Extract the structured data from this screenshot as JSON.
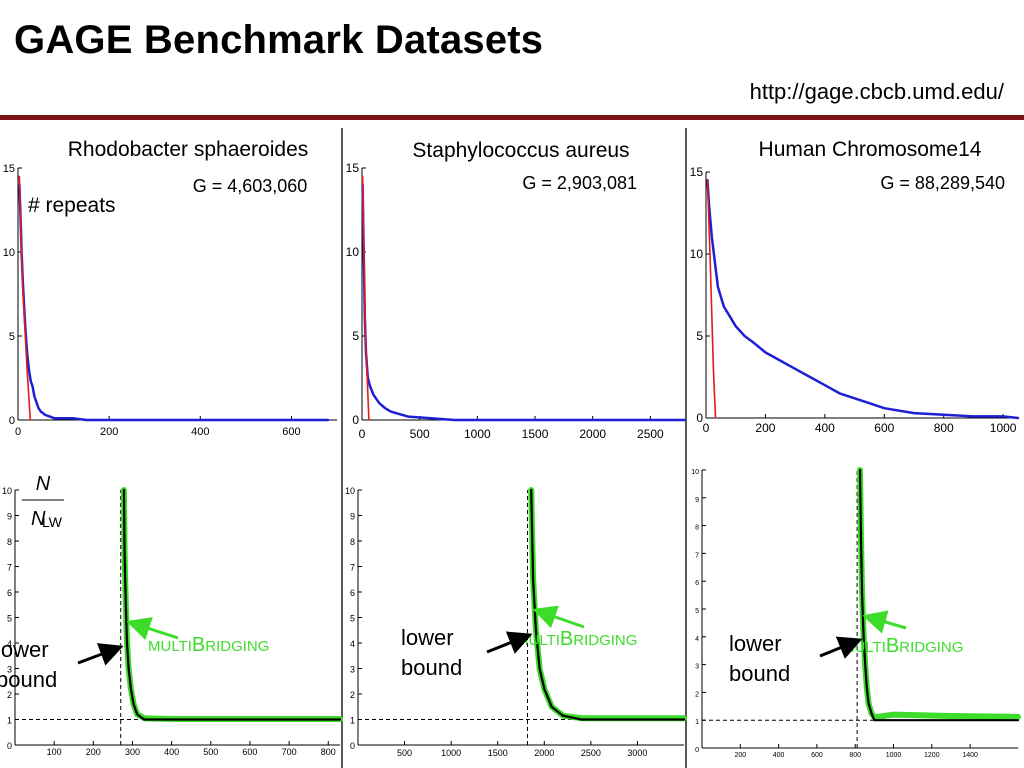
{
  "page": {
    "title": "GAGE Benchmark Datasets",
    "url": "http://gage.cbcb.umd.edu/"
  },
  "colors": {
    "rule": "#7b1214",
    "series_blue": "#1f1fd6",
    "series_red": "#e21b1b",
    "series_green": "#3ddc2a",
    "series_black": "#000000",
    "arrow_green": "#3ddc2a",
    "arrow_black": "#000000"
  },
  "annotations": {
    "repeats_label": "# repeats",
    "ratio_numerator": "N",
    "ratio_denominator_main": "N",
    "ratio_denominator_sub": "LW",
    "lower_bound_line1": "lower",
    "lower_bound_line2": "bound",
    "multibridging_small1": "MULTI",
    "multibridging_big": "B",
    "multibridging_small2": "RIDGING"
  },
  "chart_data": [
    {
      "type": "line",
      "title": "Rhodobacter sphaeroides",
      "annotation": "G = 4,603,060",
      "xlim": [
        0,
        700
      ],
      "ylim": [
        0,
        15
      ],
      "xticks": [
        0,
        200,
        400,
        600
      ],
      "yticks": [
        0,
        5,
        10,
        15
      ],
      "series": [
        {
          "color": "blue",
          "x": [
            3,
            5,
            8,
            10,
            13,
            16,
            20,
            24,
            28,
            32,
            36,
            40,
            45,
            50,
            55,
            60,
            70,
            80,
            100,
            120,
            150,
            200,
            260,
            280,
            360,
            460,
            680
          ],
          "y": [
            14,
            12.5,
            10,
            8.5,
            7,
            5.5,
            4,
            3,
            2.3,
            2,
            1.4,
            1.1,
            0.7,
            0.5,
            0.4,
            0.3,
            0.2,
            0.1,
            0.1,
            0.1,
            0,
            0,
            0,
            0,
            0,
            0,
            0
          ]
        },
        {
          "color": "red",
          "x": [
            3,
            10,
            20,
            27
          ],
          "y": [
            14.5,
            8,
            3,
            0
          ]
        }
      ]
    },
    {
      "type": "line",
      "title": "Staphylococcus aureus",
      "annotation": "G = 2,903,081",
      "xlim": [
        0,
        2800
      ],
      "ylim": [
        0,
        15
      ],
      "xticks": [
        0,
        500,
        1000,
        1500,
        2000,
        2500
      ],
      "yticks": [
        0,
        5,
        10,
        15
      ],
      "series": [
        {
          "color": "blue",
          "x": [
            5,
            15,
            25,
            35,
            50,
            70,
            100,
            150,
            200,
            250,
            300,
            400,
            600,
            800,
            1000,
            1200,
            1500,
            1700,
            2200,
            2500,
            2800
          ],
          "y": [
            14,
            10,
            6,
            4,
            2.5,
            2,
            1.5,
            1,
            0.7,
            0.5,
            0.4,
            0.2,
            0.1,
            0,
            0,
            0,
            0,
            0,
            0,
            0,
            0
          ]
        },
        {
          "color": "red",
          "x": [
            5,
            30,
            60
          ],
          "y": [
            14.5,
            5,
            0
          ]
        }
      ]
    },
    {
      "type": "line",
      "title": "Human Chromosome14",
      "annotation": "G = 88,289,540",
      "xlim": [
        0,
        1050
      ],
      "ylim": [
        0,
        15
      ],
      "xticks": [
        0,
        200,
        400,
        600,
        800,
        1000
      ],
      "yticks": [
        0,
        5,
        10,
        15
      ],
      "series": [
        {
          "color": "blue",
          "x": [
            5,
            10,
            20,
            30,
            40,
            60,
            80,
            100,
            130,
            160,
            200,
            250,
            300,
            350,
            400,
            450,
            500,
            550,
            600,
            700,
            800,
            900,
            1000,
            1050
          ],
          "y": [
            14.5,
            13,
            11,
            9.5,
            8,
            6.8,
            6.2,
            5.6,
            5,
            4.6,
            4,
            3.5,
            3,
            2.5,
            2,
            1.5,
            1.2,
            0.9,
            0.6,
            0.3,
            0.2,
            0.1,
            0.1,
            0
          ]
        },
        {
          "color": "red",
          "x": [
            5,
            15,
            25,
            32
          ],
          "y": [
            14.5,
            9,
            3,
            0
          ]
        }
      ]
    },
    {
      "type": "line",
      "title": "",
      "xlim": [
        0,
        830
      ],
      "ylim": [
        0,
        10
      ],
      "xticks": [
        100,
        200,
        300,
        400,
        500,
        600,
        700,
        800
      ],
      "yticks": [
        0,
        1,
        2,
        3,
        4,
        5,
        6,
        7,
        8,
        9,
        10
      ],
      "lower_bound_x": 270,
      "reference_y": 1,
      "series": [
        {
          "color": "green",
          "x": [
            278,
            280,
            283,
            286,
            290,
            296,
            303,
            312,
            330,
            400,
            600,
            830
          ],
          "y": [
            10,
            7.5,
            5.5,
            4,
            3,
            2.2,
            1.6,
            1.2,
            1.05,
            1.02,
            1.02,
            1.02
          ]
        },
        {
          "color": "black",
          "x": [
            278,
            280,
            283,
            286,
            290,
            296,
            303,
            312,
            330,
            400,
            600,
            830
          ],
          "y": [
            10,
            7.5,
            5.5,
            4,
            3,
            2.2,
            1.6,
            1.2,
            1.0,
            1.0,
            1.0,
            1.0
          ]
        }
      ]
    },
    {
      "type": "line",
      "title": "",
      "xlim": [
        0,
        3500
      ],
      "ylim": [
        0,
        10
      ],
      "xticks": [
        500,
        1000,
        1500,
        2000,
        2500,
        3000
      ],
      "yticks": [
        0,
        1,
        2,
        3,
        4,
        5,
        6,
        7,
        8,
        9,
        10
      ],
      "lower_bound_x": 1820,
      "reference_y": 1,
      "series": [
        {
          "color": "green",
          "x": [
            1860,
            1880,
            1910,
            1950,
            2000,
            2080,
            2200,
            2400,
            2700,
            3500
          ],
          "y": [
            10,
            6.5,
            4.5,
            3,
            2.2,
            1.5,
            1.15,
            1.05,
            1.05,
            1.05
          ]
        },
        {
          "color": "black",
          "x": [
            1860,
            1880,
            1910,
            1950,
            2000,
            2080,
            2200,
            2400,
            2700,
            3500
          ],
          "y": [
            10,
            6.5,
            4.5,
            3,
            2.2,
            1.5,
            1.15,
            1.0,
            1.0,
            1.0
          ]
        }
      ]
    },
    {
      "type": "line",
      "title": "",
      "xlim": [
        0,
        1650
      ],
      "ylim": [
        0,
        10
      ],
      "xticks": [
        200,
        400,
        600,
        800,
        1000,
        1200,
        1400
      ],
      "yticks": [
        0,
        1,
        2,
        3,
        4,
        5,
        6,
        7,
        8,
        9,
        10
      ],
      "lower_bound_x": 810,
      "reference_y": 1,
      "series": [
        {
          "color": "green",
          "x": [
            825,
            830,
            836,
            844,
            852,
            860,
            870,
            885,
            900,
            1000,
            1300,
            1650
          ],
          "y": [
            10,
            7.5,
            5.5,
            4,
            3,
            2.2,
            1.6,
            1.25,
            1.1,
            1.2,
            1.15,
            1.12
          ]
        },
        {
          "color": "black",
          "x": [
            825,
            830,
            836,
            844,
            852,
            860,
            870,
            885,
            900,
            1000,
            1300,
            1650
          ],
          "y": [
            10,
            7.5,
            5.5,
            4,
            3,
            2.2,
            1.6,
            1.25,
            1.0,
            1.0,
            1.0,
            1.0
          ]
        }
      ]
    }
  ]
}
